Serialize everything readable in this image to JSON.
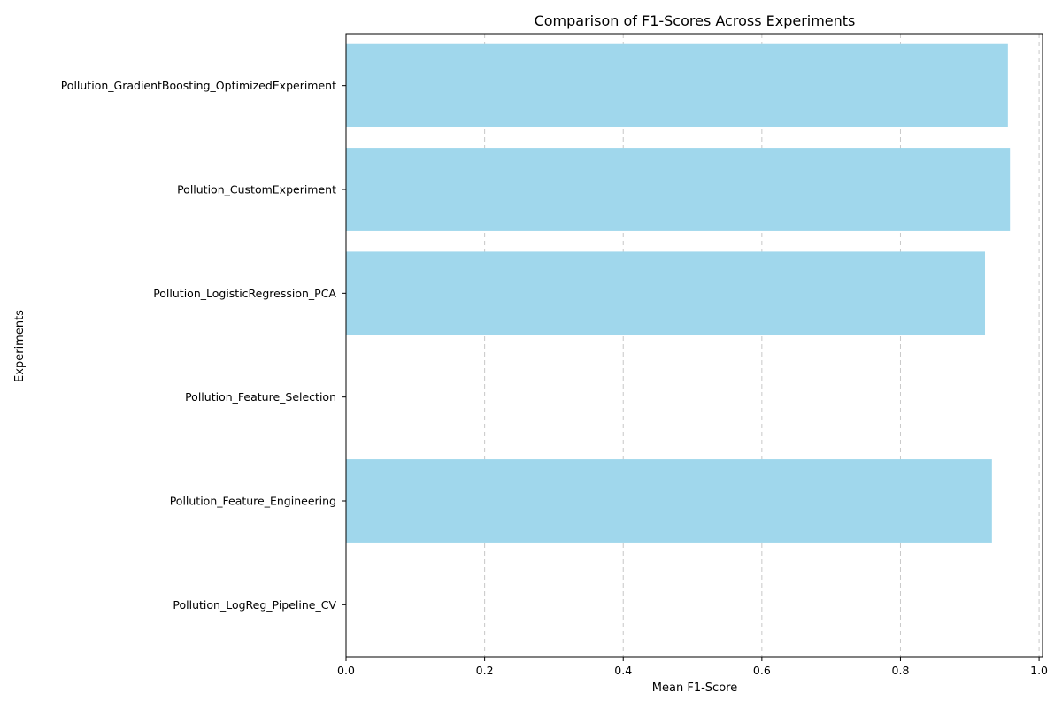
{
  "chart_data": {
    "type": "bar",
    "orientation": "horizontal",
    "title": "Comparison of F1-Scores Across Experiments",
    "xlabel": "Mean F1-Score",
    "ylabel": "Experiments",
    "categories": [
      "Pollution_GradientBoosting_OptimizedExperiment",
      "Pollution_CustomExperiment",
      "Pollution_LogisticRegression_PCA",
      "Pollution_Feature_Selection",
      "Pollution_Feature_Engineering",
      "Pollution_LogReg_Pipeline_CV"
    ],
    "values": [
      0.955,
      0.958,
      0.922,
      0.0,
      0.932,
      0.0
    ],
    "xlim": [
      0.0,
      1.005
    ],
    "xticks": [
      0.0,
      0.2,
      0.4,
      0.6,
      0.8,
      1.0
    ],
    "xtick_labels": [
      "0.0",
      "0.2",
      "0.4",
      "0.6",
      "0.8",
      "1.0"
    ],
    "grid": "x-axis dashed",
    "bar_color": "#a0d7ec",
    "grid_color": "#c8c8c8",
    "axis_color": "#000000"
  }
}
